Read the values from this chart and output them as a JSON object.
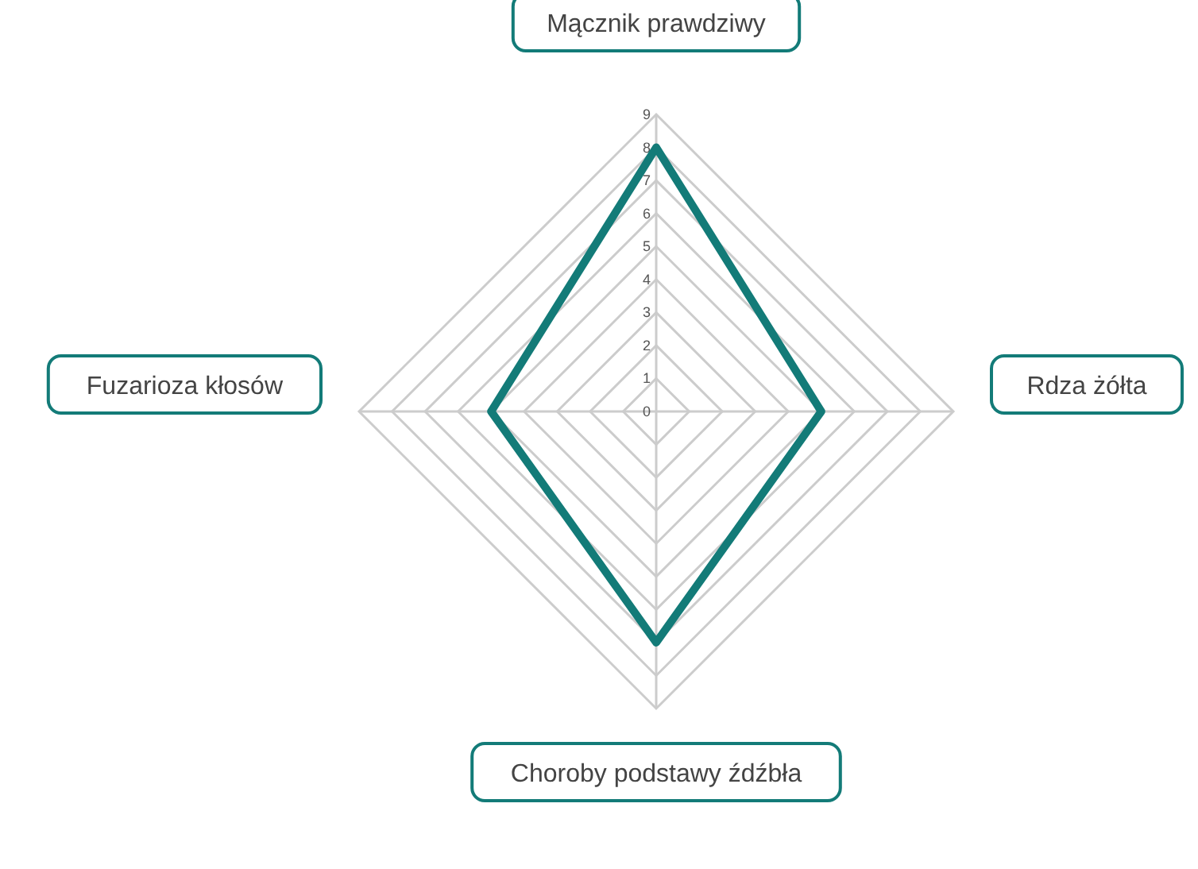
{
  "chart_data": {
    "type": "radar",
    "categories": [
      "Mącznik prawdziwy",
      "Rdza żółta",
      "Choroby podstawy źdźbła",
      "Fuzarioza kłosów"
    ],
    "series": [
      {
        "color": "#137b78",
        "values": [
          8,
          5,
          7,
          5
        ]
      }
    ],
    "ylim": [
      0,
      9
    ],
    "yticks": [
      0,
      1,
      2,
      3,
      4,
      5,
      6,
      7,
      8,
      9
    ],
    "grid": true
  }
}
